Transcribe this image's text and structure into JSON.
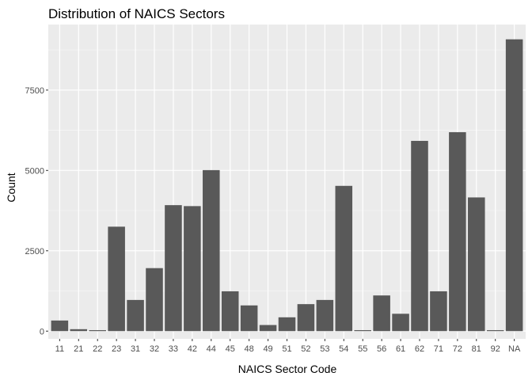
{
  "chart_data": {
    "type": "bar",
    "title": "Distribution of NAICS Sectors",
    "xlabel": "NAICS Sector Code",
    "ylabel": "Count",
    "categories": [
      "11",
      "21",
      "22",
      "23",
      "31",
      "32",
      "33",
      "42",
      "44",
      "45",
      "48",
      "49",
      "51",
      "52",
      "53",
      "54",
      "55",
      "56",
      "61",
      "62",
      "71",
      "72",
      "81",
      "92",
      "NA"
    ],
    "values": [
      330,
      60,
      30,
      3250,
      970,
      1960,
      3920,
      3890,
      5010,
      1240,
      800,
      190,
      430,
      840,
      970,
      4520,
      30,
      1110,
      540,
      5920,
      1240,
      6190,
      4160,
      30,
      9080
    ],
    "ylim": [
      -240,
      9540
    ],
    "yticks": [
      0,
      2500,
      5000,
      7500
    ],
    "ytick_labels": [
      "0",
      "2500",
      "5000",
      "7500"
    ],
    "grid": true,
    "colors": {
      "bar": "#595959",
      "panel": "#ebebeb",
      "grid_major": "#ffffff",
      "grid_minor": "#f5f5f5"
    }
  }
}
